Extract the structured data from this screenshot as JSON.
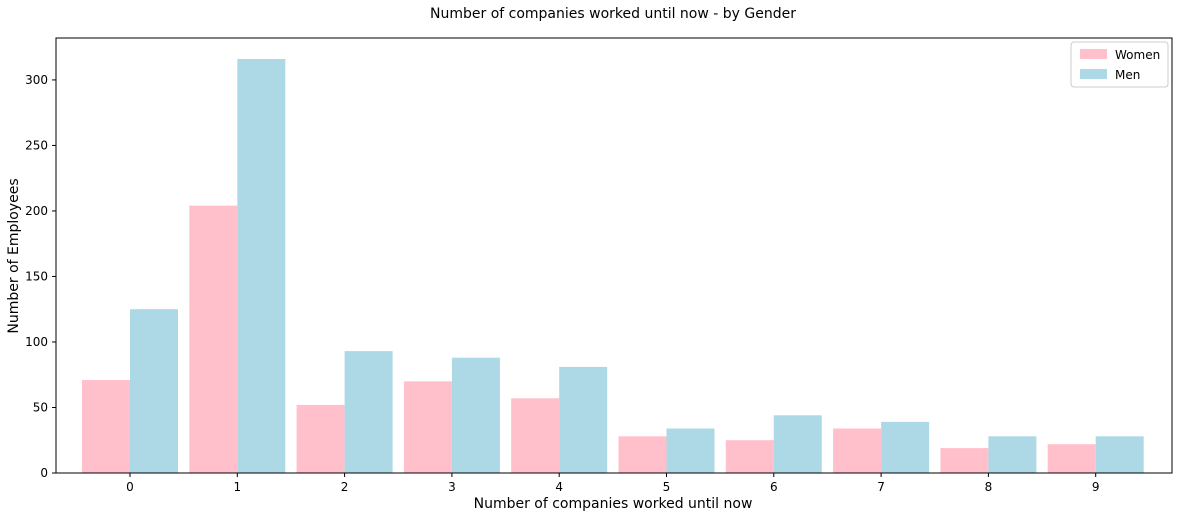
{
  "chart_data": {
    "type": "bar",
    "title": "Number of companies worked until now - by Gender",
    "xlabel": "Number of companies worked until now",
    "ylabel": "Number of Employees",
    "categories": [
      "0",
      "1",
      "2",
      "3",
      "4",
      "5",
      "6",
      "7",
      "8",
      "9"
    ],
    "series": [
      {
        "name": "Women",
        "color": "#ffc0cb",
        "values": [
          71,
          204,
          52,
          70,
          57,
          28,
          25,
          34,
          19,
          22
        ]
      },
      {
        "name": "Men",
        "color": "#add8e6",
        "values": [
          125,
          316,
          93,
          88,
          81,
          34,
          44,
          39,
          28,
          28
        ]
      }
    ],
    "yticks": [
      "0",
      "50",
      "100",
      "150",
      "200",
      "250",
      "300"
    ],
    "ylim": [
      0,
      332
    ],
    "grid": false,
    "legend": "top-right"
  }
}
